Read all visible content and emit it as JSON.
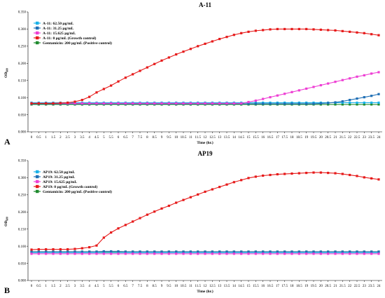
{
  "chart_data": [
    {
      "type": "line",
      "panel_label": "A",
      "title": "A-11",
      "xlabel": "Time (hr.)",
      "ylabel": "OD600",
      "ylabel_main": "OD",
      "ylabel_sub": "600",
      "ylim": [
        0,
        0.35
      ],
      "yticks": [
        "0.000",
        "0.050",
        "0.100",
        "0.150",
        "0.200",
        "0.250",
        "0.300",
        "0.350"
      ],
      "x": [
        0,
        0.5,
        1,
        1.5,
        2,
        2.5,
        3,
        3.5,
        4,
        4.5,
        5,
        5.5,
        6,
        6.5,
        7,
        7.5,
        8,
        8.5,
        9,
        9.5,
        10,
        10.5,
        11,
        11.5,
        12,
        12.5,
        13,
        13.5,
        14,
        14.5,
        15,
        15.5,
        16,
        16.5,
        17,
        17.5,
        18,
        18.5,
        19,
        19.5,
        20,
        20.5,
        21,
        21.5,
        22,
        22.5,
        23,
        23.5,
        24
      ],
      "legend_position": "top-left",
      "grid": false,
      "series": [
        {
          "name": "A-11: 62.50 µg/mL",
          "color": "#1ab2e8",
          "marker": "square",
          "values": [
            0.085,
            0.085,
            0.085,
            0.085,
            0.085,
            0.085,
            0.085,
            0.085,
            0.085,
            0.085,
            0.085,
            0.085,
            0.085,
            0.085,
            0.085,
            0.085,
            0.085,
            0.085,
            0.085,
            0.085,
            0.085,
            0.085,
            0.085,
            0.085,
            0.085,
            0.085,
            0.085,
            0.085,
            0.085,
            0.085,
            0.085,
            0.085,
            0.085,
            0.085,
            0.085,
            0.085,
            0.085,
            0.085,
            0.085,
            0.085,
            0.085,
            0.085,
            0.085,
            0.085,
            0.085,
            0.085,
            0.085,
            0.085,
            0.085
          ]
        },
        {
          "name": "A-11: 31.25 µg/mL",
          "color": "#1f6fb5",
          "marker": "square",
          "values": [
            0.082,
            0.082,
            0.082,
            0.082,
            0.082,
            0.082,
            0.082,
            0.082,
            0.082,
            0.082,
            0.082,
            0.082,
            0.082,
            0.082,
            0.082,
            0.082,
            0.082,
            0.082,
            0.082,
            0.082,
            0.082,
            0.082,
            0.082,
            0.082,
            0.082,
            0.082,
            0.082,
            0.082,
            0.082,
            0.082,
            0.082,
            0.082,
            0.082,
            0.082,
            0.082,
            0.082,
            0.082,
            0.082,
            0.082,
            0.082,
            0.083,
            0.084,
            0.086,
            0.089,
            0.093,
            0.097,
            0.101,
            0.105,
            0.11
          ]
        },
        {
          "name": "A-11: 15.625 µg/mL",
          "color": "#ee3fd4",
          "marker": "square",
          "values": [
            0.083,
            0.083,
            0.083,
            0.083,
            0.083,
            0.083,
            0.083,
            0.083,
            0.083,
            0.083,
            0.083,
            0.083,
            0.083,
            0.083,
            0.083,
            0.083,
            0.083,
            0.083,
            0.083,
            0.083,
            0.083,
            0.083,
            0.083,
            0.083,
            0.083,
            0.083,
            0.083,
            0.083,
            0.083,
            0.083,
            0.087,
            0.091,
            0.096,
            0.101,
            0.106,
            0.111,
            0.116,
            0.121,
            0.126,
            0.131,
            0.136,
            0.141,
            0.146,
            0.151,
            0.156,
            0.161,
            0.165,
            0.17,
            0.174
          ]
        },
        {
          "name": "A-11: 0 µg/mL (Growth control)",
          "color": "#e61a1a",
          "marker": "square",
          "values": [
            0.083,
            0.083,
            0.083,
            0.083,
            0.084,
            0.085,
            0.088,
            0.093,
            0.102,
            0.115,
            0.125,
            0.135,
            0.147,
            0.158,
            0.168,
            0.178,
            0.188,
            0.198,
            0.208,
            0.217,
            0.226,
            0.234,
            0.242,
            0.25,
            0.257,
            0.264,
            0.271,
            0.277,
            0.283,
            0.288,
            0.292,
            0.295,
            0.297,
            0.299,
            0.3,
            0.3,
            0.3,
            0.3,
            0.3,
            0.299,
            0.298,
            0.297,
            0.296,
            0.294,
            0.292,
            0.29,
            0.288,
            0.285,
            0.282
          ]
        },
        {
          "name": "Gentamicin: 200 µg/mL (Positive control)",
          "color": "#1f8a2e",
          "marker": "square",
          "values": [
            0.08,
            0.08,
            0.08,
            0.08,
            0.08,
            0.08,
            0.08,
            0.08,
            0.08,
            0.08,
            0.08,
            0.08,
            0.08,
            0.08,
            0.08,
            0.08,
            0.08,
            0.08,
            0.08,
            0.08,
            0.08,
            0.08,
            0.08,
            0.08,
            0.08,
            0.08,
            0.08,
            0.08,
            0.08,
            0.08,
            0.08,
            0.08,
            0.08,
            0.08,
            0.08,
            0.08,
            0.08,
            0.08,
            0.08,
            0.08,
            0.08,
            0.08,
            0.08,
            0.08,
            0.08,
            0.08,
            0.08,
            0.08,
            0.08
          ]
        }
      ]
    },
    {
      "type": "line",
      "panel_label": "B",
      "title": "AP19",
      "xlabel": "Time (hr.)",
      "ylabel": "OD600",
      "ylabel_main": "OD",
      "ylabel_sub": "600",
      "ylim": [
        0,
        0.35
      ],
      "yticks": [
        "0.000",
        "0.050",
        "0.100",
        "0.150",
        "0.200",
        "0.250",
        "0.300",
        "0.350"
      ],
      "x": [
        0,
        0.5,
        1,
        1.5,
        2,
        2.5,
        3,
        3.5,
        4,
        4.5,
        5,
        5.5,
        6,
        6.5,
        7,
        7.5,
        8,
        8.5,
        9,
        9.5,
        10,
        10.5,
        11,
        11.5,
        12,
        12.5,
        13,
        13.5,
        14,
        14.5,
        15,
        15.5,
        16,
        16.5,
        17,
        17.5,
        18,
        18.5,
        19,
        19.5,
        20,
        20.5,
        21,
        21.5,
        22,
        22.5,
        23,
        23.5,
        24
      ],
      "legend_position": "top-left",
      "grid": false,
      "series": [
        {
          "name": "AP19: 62.50 µg/mL",
          "color": "#1ab2e8",
          "marker": "square",
          "values": [
            0.081,
            0.081,
            0.081,
            0.081,
            0.081,
            0.081,
            0.081,
            0.081,
            0.081,
            0.081,
            0.081,
            0.081,
            0.081,
            0.081,
            0.081,
            0.081,
            0.081,
            0.081,
            0.081,
            0.081,
            0.081,
            0.081,
            0.081,
            0.081,
            0.081,
            0.081,
            0.081,
            0.081,
            0.081,
            0.081,
            0.081,
            0.081,
            0.081,
            0.081,
            0.081,
            0.081,
            0.081,
            0.081,
            0.081,
            0.081,
            0.081,
            0.081,
            0.081,
            0.081,
            0.081,
            0.081,
            0.081,
            0.081,
            0.081
          ]
        },
        {
          "name": "AP19: 31.25 µg/mL",
          "color": "#1f6fb5",
          "marker": "square",
          "values": [
            0.084,
            0.084,
            0.084,
            0.084,
            0.084,
            0.084,
            0.084,
            0.084,
            0.084,
            0.084,
            0.085,
            0.085,
            0.085,
            0.084,
            0.084,
            0.084,
            0.084,
            0.084,
            0.084,
            0.084,
            0.084,
            0.084,
            0.084,
            0.084,
            0.084,
            0.084,
            0.084,
            0.084,
            0.084,
            0.084,
            0.084,
            0.084,
            0.084,
            0.084,
            0.084,
            0.084,
            0.084,
            0.084,
            0.084,
            0.084,
            0.084,
            0.084,
            0.084,
            0.084,
            0.084,
            0.084,
            0.084,
            0.084,
            0.084
          ]
        },
        {
          "name": "AP19: 15.625 µg/mL",
          "color": "#ee3fd4",
          "marker": "square",
          "values": [
            0.078,
            0.078,
            0.078,
            0.078,
            0.078,
            0.078,
            0.078,
            0.078,
            0.078,
            0.078,
            0.078,
            0.078,
            0.078,
            0.078,
            0.078,
            0.078,
            0.078,
            0.078,
            0.078,
            0.078,
            0.078,
            0.078,
            0.078,
            0.078,
            0.078,
            0.078,
            0.078,
            0.078,
            0.078,
            0.078,
            0.078,
            0.078,
            0.078,
            0.078,
            0.078,
            0.078,
            0.078,
            0.078,
            0.078,
            0.078,
            0.078,
            0.078,
            0.078,
            0.078,
            0.078,
            0.078,
            0.078,
            0.078,
            0.078
          ]
        },
        {
          "name": "AP19: 0 µg/mL (Growth control)",
          "color": "#e61a1a",
          "marker": "square",
          "values": [
            0.09,
            0.091,
            0.091,
            0.091,
            0.091,
            0.091,
            0.092,
            0.094,
            0.097,
            0.102,
            0.125,
            0.14,
            0.152,
            0.162,
            0.172,
            0.182,
            0.192,
            0.201,
            0.21,
            0.218,
            0.227,
            0.235,
            0.243,
            0.251,
            0.259,
            0.266,
            0.273,
            0.28,
            0.287,
            0.293,
            0.299,
            0.303,
            0.306,
            0.308,
            0.31,
            0.311,
            0.312,
            0.313,
            0.314,
            0.315,
            0.315,
            0.314,
            0.313,
            0.311,
            0.308,
            0.305,
            0.301,
            0.298,
            0.295
          ]
        },
        {
          "name": "Gentamicin: 200 µg/mL (Positive control)",
          "color": "#1f8a2e",
          "marker": "square",
          "values": [
            0.084,
            0.084,
            0.084,
            0.084,
            0.084,
            0.084,
            0.084,
            0.084,
            0.084,
            0.084,
            0.084,
            0.084,
            0.084,
            0.084,
            0.084,
            0.084,
            0.084,
            0.084,
            0.084,
            0.084,
            0.084,
            0.084,
            0.084,
            0.084,
            0.084,
            0.084,
            0.084,
            0.084,
            0.084,
            0.084,
            0.084,
            0.084,
            0.084,
            0.084,
            0.084,
            0.084,
            0.084,
            0.084,
            0.084,
            0.084,
            0.084,
            0.084,
            0.084,
            0.084,
            0.084,
            0.084,
            0.084,
            0.084,
            0.084
          ]
        }
      ]
    }
  ]
}
